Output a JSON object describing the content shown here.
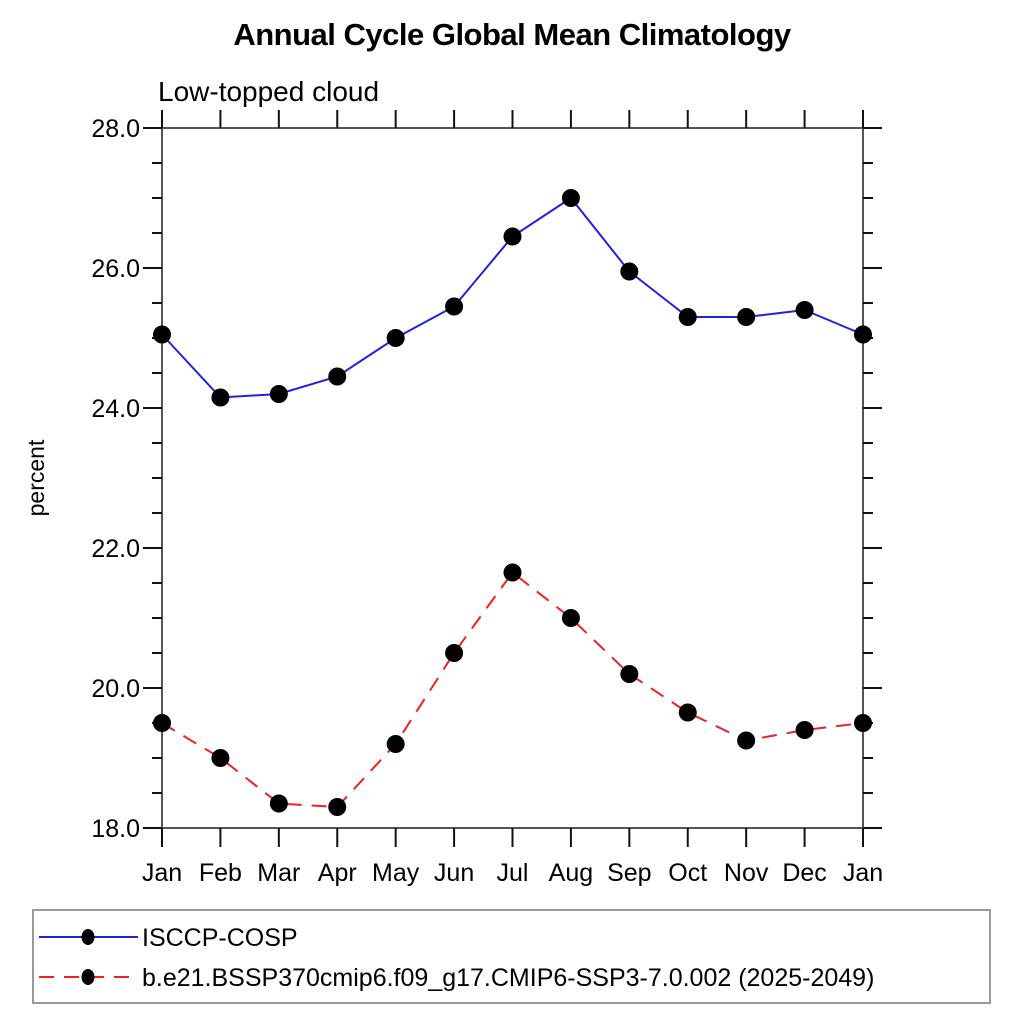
{
  "page": {
    "background": "#ffffff"
  },
  "header": {
    "title": "Annual Cycle Global Mean Climatology",
    "subtitle": "Low-topped cloud"
  },
  "chart_data": {
    "type": "line",
    "title": "Annual Cycle Global Mean Climatology",
    "subtitle": "Low-topped cloud",
    "xlabel": "",
    "ylabel": "percent",
    "x_categories": [
      "Jan",
      "Feb",
      "Mar",
      "Apr",
      "May",
      "Jun",
      "Jul",
      "Aug",
      "Sep",
      "Oct",
      "Nov",
      "Dec",
      "Jan"
    ],
    "ylim": [
      18.0,
      28.0
    ],
    "ytick_major": [
      18.0,
      20.0,
      22.0,
      24.0,
      26.0,
      28.0
    ],
    "ytick_major_labels": [
      "18.0",
      "20.0",
      "22.0",
      "24.0",
      "26.0",
      "28.0"
    ],
    "ytick_minor_step": 0.5,
    "grid": false,
    "legend_position": "bottom-left-box",
    "series": [
      {
        "name": "ISCCP-COSP",
        "color": "#2222dd",
        "line_style": "solid",
        "marker": "circle",
        "marker_color": "#000000",
        "values": [
          25.05,
          24.15,
          24.2,
          24.45,
          25.0,
          25.45,
          26.45,
          27.0,
          25.95,
          25.3,
          25.3,
          25.4,
          25.05
        ]
      },
      {
        "name": "b.e21.BSSP370cmip6.f09_g17.CMIP6-SSP3-7.0.002 (2025-2049)",
        "color": "#ee2222",
        "line_style": "dashed",
        "marker": "circle",
        "marker_color": "#000000",
        "values": [
          19.5,
          19.0,
          18.35,
          18.3,
          19.2,
          20.5,
          21.65,
          21.0,
          20.2,
          19.65,
          19.25,
          19.4,
          19.5
        ]
      }
    ],
    "colors": {
      "axis_box": "#555555",
      "tick": "#111111",
      "legend_border": "#999999",
      "text": "#000000"
    }
  }
}
